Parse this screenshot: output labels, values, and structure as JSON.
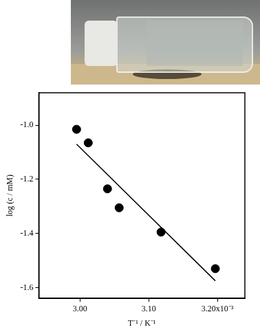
{
  "chart_data": {
    "type": "scatter",
    "x_label": "T⁻¹ / K⁻¹",
    "y_label": "log (c / mM)",
    "xlim": [
      0.00294,
      0.00324
    ],
    "xticks": [
      {
        "value": 0.003,
        "label": "3.00"
      },
      {
        "value": 0.0031,
        "label": "3.10"
      },
      {
        "value": 0.0032,
        "label": "3.20x10⁻³"
      }
    ],
    "ylim": [
      -1.64,
      -0.88
    ],
    "yticks": [
      -1.6,
      -1.4,
      -1.2,
      {
        "value": -1.0,
        "label": "-1.0"
      }
    ],
    "grid": false,
    "series": [
      {
        "type": "scatter",
        "marker": "circle",
        "color": "#000000",
        "x": [
          0.002995,
          0.003012,
          0.00304,
          0.003057,
          0.003118,
          0.003197
        ],
        "values": [
          -1.015,
          -1.065,
          -1.235,
          -1.305,
          -1.395,
          -1.53
        ]
      },
      {
        "type": "line",
        "line_style": "solid",
        "color": "#000000",
        "x": [
          0.002995,
          0.003197
        ],
        "values": [
          -1.07,
          -1.575
        ]
      }
    ]
  }
}
